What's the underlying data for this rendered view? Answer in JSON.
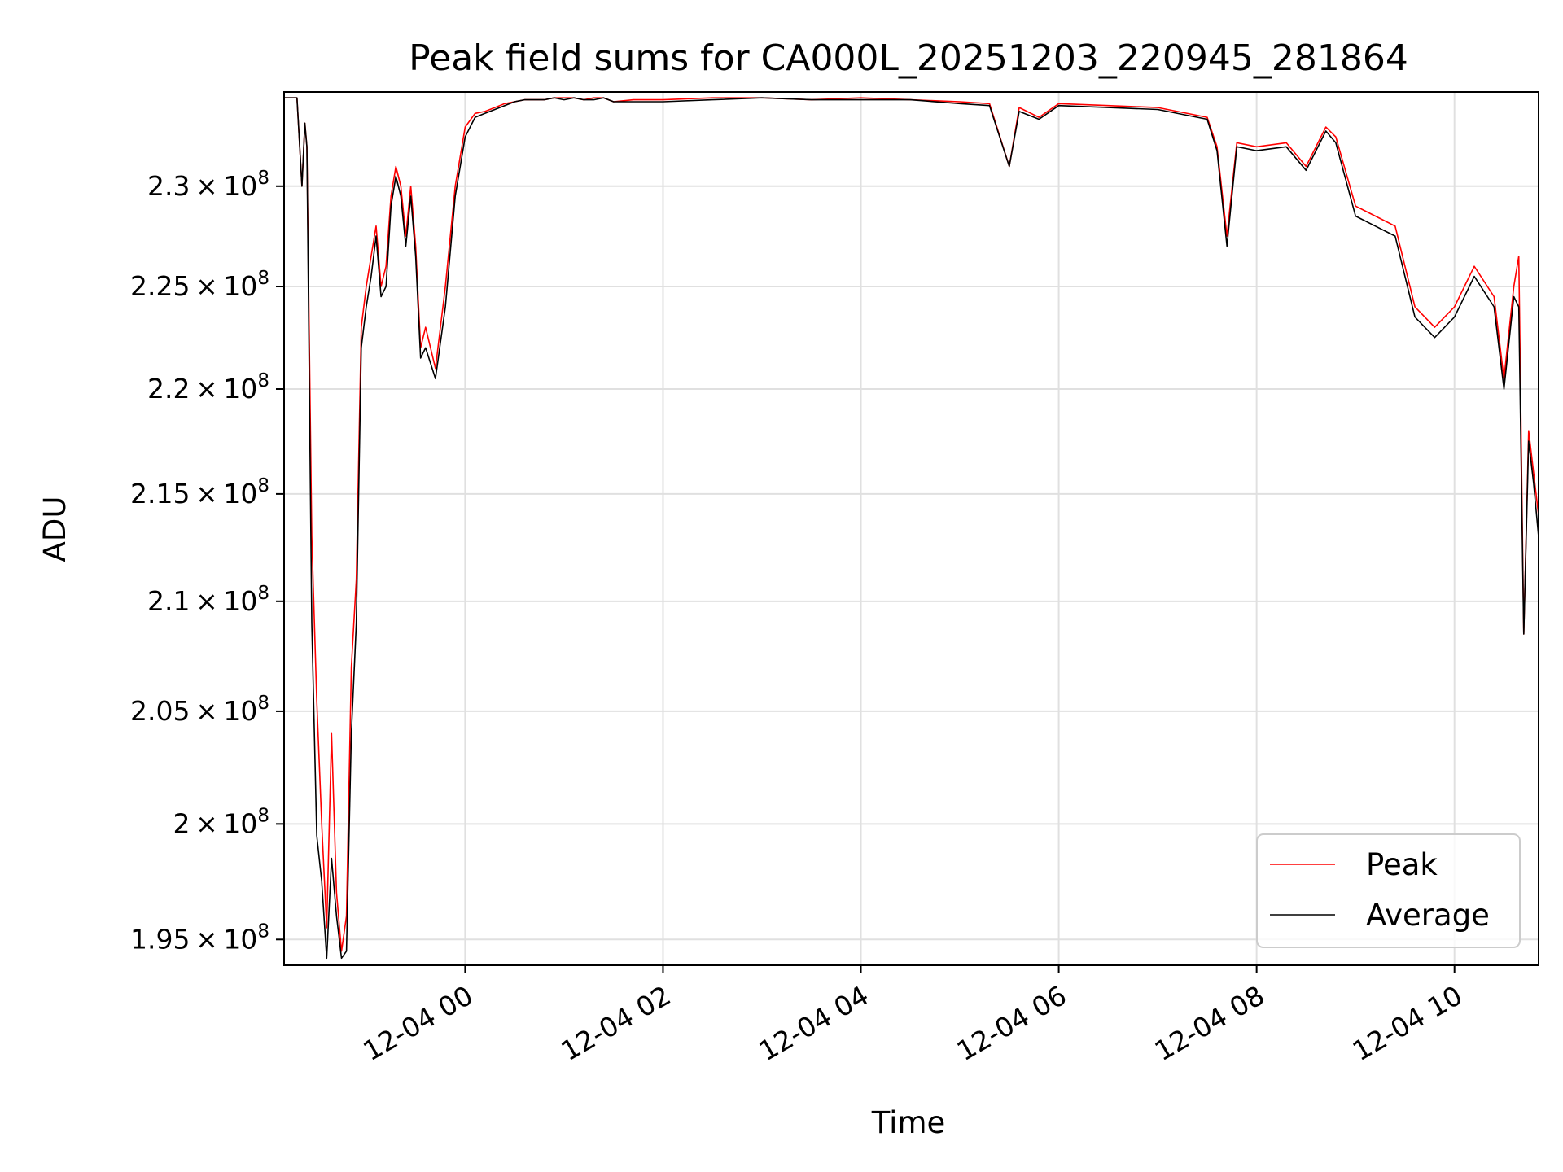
{
  "chart_data": {
    "type": "line",
    "title": "Peak field sums for CA000L_20251203_220945_281864",
    "xlabel": "Time",
    "ylabel": "ADU",
    "x_ticks": [
      "12-04 00",
      "12-04 02",
      "12-04 04",
      "12-04 06",
      "12-04 08",
      "12-04 10"
    ],
    "x_tick_hours": [
      0,
      2,
      4,
      6,
      8,
      10
    ],
    "xlim_hours": [
      -1.83,
      10.85
    ],
    "y_ticks": [
      195000000.0,
      200000000.0,
      205000000.0,
      210000000.0,
      215000000.0,
      220000000.0,
      225000000.0,
      230000000.0
    ],
    "y_tick_labels": [
      {
        "mantissa": "1.95",
        "exponent": "8"
      },
      {
        "mantissa": "2",
        "exponent": "8"
      },
      {
        "mantissa": "2.05",
        "exponent": "8"
      },
      {
        "mantissa": "2.1",
        "exponent": "8"
      },
      {
        "mantissa": "2.15",
        "exponent": "8"
      },
      {
        "mantissa": "2.2",
        "exponent": "8"
      },
      {
        "mantissa": "2.25",
        "exponent": "8"
      },
      {
        "mantissa": "2.3",
        "exponent": "8"
      }
    ],
    "ylim": [
      193900000.0,
      234800000.0
    ],
    "y_scale": "log",
    "grid": true,
    "legend_position": "lower-right",
    "series": [
      {
        "name": "Peak",
        "color": "#ff0000",
        "x_hours": [
          -1.83,
          -1.7,
          -1.65,
          -1.62,
          -1.6,
          -1.55,
          -1.5,
          -1.45,
          -1.4,
          -1.35,
          -1.3,
          -1.25,
          -1.2,
          -1.15,
          -1.1,
          -1.05,
          -1.0,
          -0.95,
          -0.9,
          -0.85,
          -0.8,
          -0.75,
          -0.7,
          -0.65,
          -0.6,
          -0.55,
          -0.5,
          -0.45,
          -0.4,
          -0.3,
          -0.2,
          -0.1,
          0.0,
          0.1,
          0.2,
          0.3,
          0.4,
          0.5,
          0.6,
          0.7,
          0.8,
          0.9,
          1.0,
          1.1,
          1.2,
          1.3,
          1.4,
          1.5,
          1.7,
          2.0,
          2.5,
          3.0,
          3.5,
          4.0,
          4.5,
          5.0,
          5.3,
          5.5,
          5.6,
          5.8,
          6.0,
          6.5,
          7.0,
          7.5,
          7.6,
          7.7,
          7.8,
          8.0,
          8.3,
          8.5,
          8.7,
          8.8,
          9.0,
          9.2,
          9.4,
          9.6,
          9.8,
          10.0,
          10.2,
          10.4,
          10.5,
          10.6,
          10.65,
          10.7,
          10.75,
          10.8,
          10.85
        ],
        "values": [
          234500000.0,
          234500000.0,
          230000000.0,
          233200000.0,
          232000000.0,
          213000000.0,
          205500000.0,
          200000000.0,
          195500000.0,
          204000000.0,
          197000000.0,
          194500000.0,
          196000000.0,
          207000000.0,
          211000000.0,
          223000000.0,
          225000000.0,
          226500000.0,
          228000000.0,
          225000000.0,
          226000000.0,
          229500000.0,
          231000000.0,
          230000000.0,
          227500000.0,
          230000000.0,
          227000000.0,
          222000000.0,
          223000000.0,
          221000000.0,
          225000000.0,
          230000000.0,
          233000000.0,
          233700000.0,
          233800000.0,
          234000000.0,
          234200000.0,
          234300000.0,
          234400000.0,
          234400000.0,
          234400000.0,
          234500000.0,
          234500000.0,
          234500000.0,
          234400000.0,
          234500000.0,
          234500000.0,
          234300000.0,
          234400000.0,
          234400000.0,
          234500000.0,
          234500000.0,
          234400000.0,
          234500000.0,
          234400000.0,
          234300000.0,
          234200000.0,
          231000000.0,
          234000000.0,
          233500000.0,
          234200000.0,
          234100000.0,
          234000000.0,
          233500000.0,
          232000000.0,
          227500000.0,
          232200000.0,
          232000000.0,
          232200000.0,
          231000000.0,
          233000000.0,
          232500000.0,
          229000000.0,
          228500000.0,
          228000000.0,
          224000000.0,
          223000000.0,
          224000000.0,
          226000000.0,
          224500000.0,
          220500000.0,
          225000000.0,
          226500000.0,
          208500000.0,
          218000000.0,
          216000000.0,
          214000000.0
        ]
      },
      {
        "name": "Average",
        "color": "#000000",
        "x_hours": [
          -1.83,
          -1.7,
          -1.65,
          -1.62,
          -1.6,
          -1.55,
          -1.5,
          -1.45,
          -1.4,
          -1.35,
          -1.3,
          -1.25,
          -1.2,
          -1.15,
          -1.1,
          -1.05,
          -1.0,
          -0.95,
          -0.9,
          -0.85,
          -0.8,
          -0.75,
          -0.7,
          -0.65,
          -0.6,
          -0.55,
          -0.5,
          -0.45,
          -0.4,
          -0.3,
          -0.2,
          -0.1,
          0.0,
          0.1,
          0.2,
          0.3,
          0.4,
          0.5,
          0.6,
          0.7,
          0.8,
          0.9,
          1.0,
          1.1,
          1.2,
          1.3,
          1.4,
          1.5,
          1.7,
          2.0,
          2.5,
          3.0,
          3.5,
          4.0,
          4.5,
          5.0,
          5.3,
          5.5,
          5.6,
          5.8,
          6.0,
          6.5,
          7.0,
          7.5,
          7.6,
          7.7,
          7.8,
          8.0,
          8.3,
          8.5,
          8.7,
          8.8,
          9.0,
          9.2,
          9.4,
          9.6,
          9.8,
          10.0,
          10.2,
          10.4,
          10.5,
          10.6,
          10.65,
          10.7,
          10.75,
          10.8,
          10.85
        ],
        "values": [
          234500000.0,
          234500000.0,
          230000000.0,
          233200000.0,
          232000000.0,
          209000000.0,
          199500000.0,
          197500000.0,
          194200000.0,
          198500000.0,
          196000000.0,
          194200000.0,
          194500000.0,
          204000000.0,
          209000000.0,
          222000000.0,
          224000000.0,
          225500000.0,
          227500000.0,
          224500000.0,
          225000000.0,
          229000000.0,
          230500000.0,
          229500000.0,
          227000000.0,
          229500000.0,
          226500000.0,
          221500000.0,
          222000000.0,
          220500000.0,
          224000000.0,
          229500000.0,
          232500000.0,
          233500000.0,
          233700000.0,
          233900000.0,
          234100000.0,
          234300000.0,
          234400000.0,
          234400000.0,
          234400000.0,
          234500000.0,
          234400000.0,
          234500000.0,
          234400000.0,
          234400000.0,
          234500000.0,
          234300000.0,
          234300000.0,
          234300000.0,
          234400000.0,
          234500000.0,
          234400000.0,
          234400000.0,
          234400000.0,
          234200000.0,
          234100000.0,
          231000000.0,
          233800000.0,
          233400000.0,
          234100000.0,
          234000000.0,
          233900000.0,
          233400000.0,
          231800000.0,
          227000000.0,
          232000000.0,
          231800000.0,
          232000000.0,
          230800000.0,
          232800000.0,
          232200000.0,
          228500000.0,
          228000000.0,
          227500000.0,
          223500000.0,
          222500000.0,
          223500000.0,
          225500000.0,
          224000000.0,
          220000000.0,
          224500000.0,
          224000000.0,
          208500000.0,
          217500000.0,
          215500000.0,
          213000000.0
        ]
      }
    ]
  }
}
